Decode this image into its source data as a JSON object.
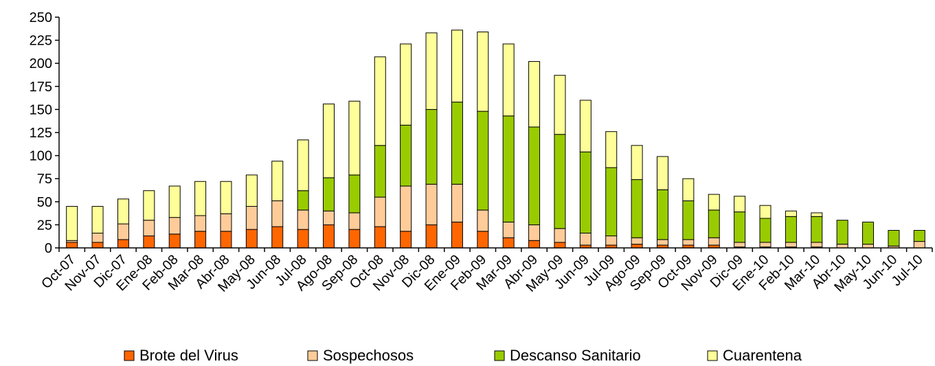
{
  "chart_data": {
    "type": "bar",
    "stacked": true,
    "title": "",
    "xlabel": "",
    "ylabel": "",
    "ylim": [
      0,
      250
    ],
    "yticks": [
      0,
      25,
      50,
      75,
      100,
      125,
      150,
      175,
      200,
      225,
      250
    ],
    "grid": false,
    "legend_position": "bottom",
    "categories": [
      "Oct-07",
      "Nov-07",
      "Dic-07",
      "Ene-08",
      "Feb-08",
      "Mar-08",
      "Abr-08",
      "May-08",
      "Jun-08",
      "Jul-08",
      "Ago-08",
      "Sep-08",
      "Oct-08",
      "Nov-08",
      "Dic-08",
      "Ene-09",
      "Feb-09",
      "Mar-09",
      "Abr-09",
      "May-09",
      "Jun-09",
      "Jul-09",
      "Ago-09",
      "Sep-09",
      "Oct-09",
      "Nov-09",
      "Dic-09",
      "Ene-10",
      "Feb-10",
      "Mar-10",
      "Abr-10",
      "May-10",
      "Jun-10",
      "Jul-10"
    ],
    "series": [
      {
        "name": "Brote del Virus",
        "color": "#ff6600",
        "values": [
          6,
          6,
          9,
          13,
          15,
          18,
          18,
          20,
          23,
          20,
          25,
          20,
          23,
          18,
          25,
          28,
          18,
          11,
          8,
          6,
          3,
          3,
          4,
          3,
          3,
          3,
          1,
          1,
          1,
          1,
          0,
          0,
          0,
          0
        ]
      },
      {
        "name": "Sospechosos",
        "color": "#ffcc99",
        "values": [
          2,
          10,
          17,
          17,
          18,
          17,
          19,
          25,
          28,
          21,
          15,
          18,
          32,
          49,
          44,
          41,
          23,
          17,
          17,
          15,
          13,
          10,
          7,
          6,
          6,
          8,
          5,
          5,
          5,
          5,
          4,
          4,
          2,
          7
        ]
      },
      {
        "name": "Descanso Sanitario",
        "color": "#99cc00",
        "values": [
          0,
          0,
          0,
          0,
          0,
          0,
          0,
          0,
          0,
          21,
          36,
          41,
          56,
          66,
          81,
          89,
          107,
          115,
          106,
          102,
          88,
          74,
          63,
          54,
          42,
          30,
          33,
          26,
          28,
          28,
          26,
          24,
          17,
          12
        ]
      },
      {
        "name": "Cuarentena",
        "color": "#ffff99",
        "values": [
          37,
          29,
          27,
          32,
          34,
          37,
          35,
          34,
          43,
          55,
          80,
          80,
          96,
          88,
          83,
          78,
          86,
          78,
          71,
          64,
          56,
          39,
          37,
          36,
          24,
          17,
          17,
          14,
          6,
          4,
          0,
          0,
          0,
          0
        ]
      }
    ]
  }
}
